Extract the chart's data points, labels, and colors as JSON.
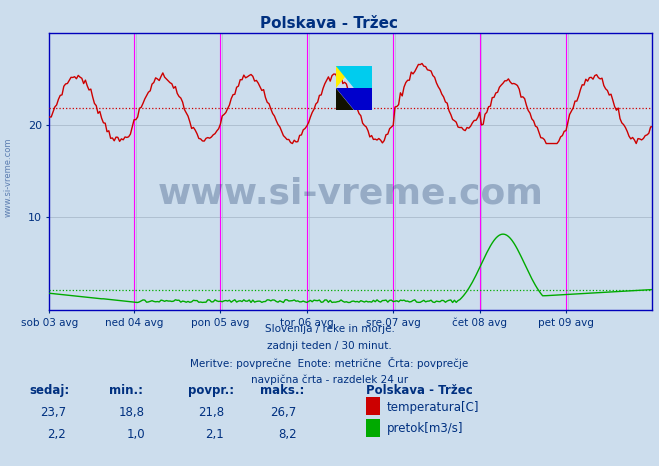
{
  "title": "Polskava - Tržec",
  "bg_color": "#ccdded",
  "plot_bg_color": "#ccdded",
  "grid_color": "#aabbcc",
  "text_color": "#003080",
  "axis_color": "#0000bb",
  "temp_color": "#cc0000",
  "flow_color": "#00aa00",
  "vline_color": "#ff00ff",
  "avg_temp_color": "#cc0000",
  "avg_flow_color": "#00aa00",
  "x_labels": [
    "sob 03 avg",
    "ned 04 avg",
    "pon 05 avg",
    "tor 06 avg",
    "sre 07 avg",
    "čet 08 avg",
    "pet 09 avg"
  ],
  "x_ticks_norm": [
    0.0,
    0.1429,
    0.2857,
    0.4286,
    0.5714,
    0.7143,
    0.8571
  ],
  "total_points": 336,
  "ylim": [
    0,
    30
  ],
  "y_ticks": [
    10,
    20
  ],
  "avg_temp": 21.8,
  "avg_flow": 2.1,
  "watermark_text": "www.si-vreme.com",
  "watermark_color": "#1a3a6a",
  "watermark_alpha": 0.3,
  "footer_lines": [
    "Slovenija / reke in morje.",
    "zadnji teden / 30 minut.",
    "Meritve: povprečne  Enote: metrične  Črta: povprečje",
    "navpična črta - razdelek 24 ur"
  ],
  "stats_headers": [
    "sedaj:",
    "min.:",
    "povpr.:",
    "maks.:"
  ],
  "stats_temp": [
    23.7,
    18.8,
    21.8,
    26.7
  ],
  "stats_flow": [
    2.2,
    1.0,
    2.1,
    8.2
  ],
  "legend_title": "Polskava - Tržec",
  "legend_items": [
    "temperatura[C]",
    "pretok[m3/s]"
  ],
  "legend_colors": [
    "#cc0000",
    "#00aa00"
  ],
  "logo_colors": {
    "yellow": "#ffee00",
    "cyan": "#00ccee",
    "blue": "#0000cc",
    "dark": "#111100"
  }
}
